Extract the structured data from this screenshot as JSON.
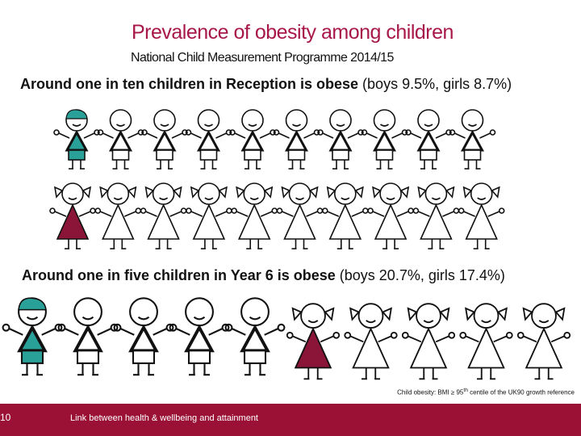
{
  "header": {
    "title": "Prevalence of obesity among children",
    "subtitle": "National Child Measurement Programme 2014/15"
  },
  "sections": [
    {
      "heading_bold": "Around one in ten children in Reception is obese",
      "heading_rest": " (boys 9.5%, girls 8.7%)"
    },
    {
      "heading_bold": "Around one in five children in Year 6 is obese",
      "heading_rest": " (boys 20.7%, girls 17.4%)"
    }
  ],
  "footnote": {
    "before": "Child obesity: BMI ≥ 95",
    "sup": "th",
    "after": " centile of the UK90 growth reference"
  },
  "footer": {
    "page_number": "10",
    "text": "Link between health & wellbeing and attainment"
  }
}
